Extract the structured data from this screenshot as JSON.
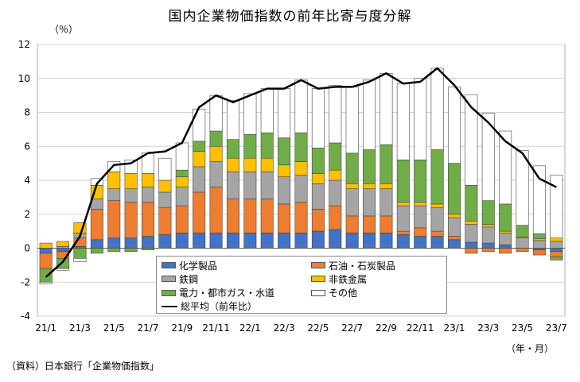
{
  "title": "国内企業物価指数の前年比寄与度分解",
  "unit_label": "（％）",
  "period_label": "（年・月）",
  "source_note": "（資料）日本銀行「企業物価指数」",
  "chart_data": {
    "type": "bar",
    "stacked": true,
    "title": "国内企業物価指数の前年比寄与度分解",
    "ylim": [
      -4,
      12
    ],
    "yticks": [
      -4,
      -2,
      0,
      2,
      4,
      6,
      8,
      10,
      12
    ],
    "x_tick_labels": [
      "21/1",
      "21/3",
      "21/5",
      "21/7",
      "21/9",
      "21/11",
      "22/1",
      "22/3",
      "22/5",
      "22/7",
      "22/9",
      "22/11",
      "23/1",
      "23/3",
      "23/5",
      "23/7"
    ],
    "categories": [
      "21/1",
      "21/2",
      "21/3",
      "21/4",
      "21/5",
      "21/6",
      "21/7",
      "21/8",
      "21/9",
      "21/10",
      "21/11",
      "21/12",
      "22/1",
      "22/2",
      "22/3",
      "22/4",
      "22/5",
      "22/6",
      "22/7",
      "22/8",
      "22/9",
      "22/10",
      "22/11",
      "22/12",
      "23/1",
      "23/2",
      "23/3",
      "23/4",
      "23/5",
      "23/6",
      "23/7"
    ],
    "series": [
      {
        "name": "化学製品",
        "color": "#4472c4",
        "values": [
          -0.3,
          -0.2,
          0.1,
          0.5,
          0.6,
          0.6,
          0.7,
          0.8,
          0.9,
          0.9,
          0.9,
          0.9,
          0.9,
          0.9,
          0.9,
          0.9,
          1.0,
          1.1,
          0.9,
          0.9,
          0.9,
          0.8,
          0.7,
          0.7,
          0.5,
          0.35,
          0.3,
          0.2,
          0.0,
          -0.1,
          -0.2
        ]
      },
      {
        "name": "石油・石炭製品",
        "color": "#ed7d31",
        "values": [
          -0.9,
          -0.4,
          0.5,
          1.8,
          2.2,
          2.1,
          2.0,
          1.6,
          1.6,
          2.4,
          2.7,
          2.0,
          2.0,
          2.0,
          1.7,
          1.8,
          1.3,
          1.4,
          1.0,
          1.0,
          1.0,
          0.2,
          0.5,
          0.3,
          0.2,
          -0.3,
          -0.2,
          -0.3,
          -0.2,
          -0.3,
          -0.3
        ]
      },
      {
        "name": "鉄鋼",
        "color": "#a5a5a5",
        "values": [
          0.0,
          0.1,
          0.3,
          0.6,
          0.7,
          0.8,
          0.9,
          0.9,
          1.1,
          1.5,
          1.5,
          1.6,
          1.6,
          1.6,
          1.6,
          1.6,
          1.5,
          1.5,
          1.6,
          1.6,
          1.6,
          1.5,
          1.3,
          1.4,
          1.1,
          1.05,
          0.95,
          0.7,
          0.6,
          0.45,
          0.4
        ]
      },
      {
        "name": "非鉄金属",
        "color": "#ffc000",
        "values": [
          0.3,
          0.3,
          0.6,
          0.8,
          1.0,
          0.9,
          0.8,
          0.7,
          0.6,
          0.9,
          0.9,
          0.8,
          0.8,
          0.8,
          0.7,
          0.8,
          0.6,
          0.6,
          0.3,
          0.3,
          0.3,
          0.2,
          0.2,
          0.2,
          0.2,
          0.2,
          0.15,
          0.1,
          0.05,
          0.1,
          0.2
        ]
      },
      {
        "name": "電力・都市ガス・水道",
        "color": "#70ad47",
        "values": [
          -0.8,
          -0.6,
          -0.6,
          -0.3,
          -0.2,
          -0.2,
          -0.1,
          0.0,
          0.4,
          0.6,
          0.9,
          1.1,
          1.4,
          1.5,
          1.6,
          1.7,
          1.5,
          1.6,
          1.8,
          2.0,
          2.3,
          2.5,
          2.5,
          3.2,
          3.0,
          2.1,
          1.4,
          1.6,
          0.7,
          0.3,
          -0.2
        ]
      },
      {
        "name": "その他",
        "color": "#ffffff",
        "values": [
          -0.1,
          -0.1,
          -0.2,
          0.4,
          0.6,
          0.8,
          1.2,
          1.3,
          1.6,
          1.9,
          2.1,
          2.3,
          2.4,
          2.6,
          2.9,
          3.1,
          3.5,
          3.4,
          3.9,
          4.1,
          4.2,
          4.5,
          4.8,
          4.8,
          4.5,
          5.35,
          5.15,
          4.3,
          4.4,
          4.0,
          3.7
        ]
      }
    ],
    "line": {
      "name": "総平均（前年比）",
      "color": "#000000",
      "values": [
        -1.7,
        -0.8,
        0.7,
        3.8,
        4.9,
        5.0,
        5.6,
        5.7,
        6.2,
        8.3,
        9.0,
        8.6,
        9.0,
        9.4,
        9.4,
        9.9,
        9.4,
        9.5,
        9.5,
        9.8,
        10.3,
        9.7,
        9.8,
        10.6,
        9.6,
        8.3,
        7.4,
        6.3,
        5.6,
        4.1,
        3.6
      ]
    },
    "legend": {
      "placement": "bottom-center",
      "entries": [
        "化学製品",
        "石油・石炭製品",
        "鉄鋼",
        "非鉄金属",
        "電力・都市ガス・水道",
        "その他",
        "総平均（前年比）"
      ]
    }
  }
}
